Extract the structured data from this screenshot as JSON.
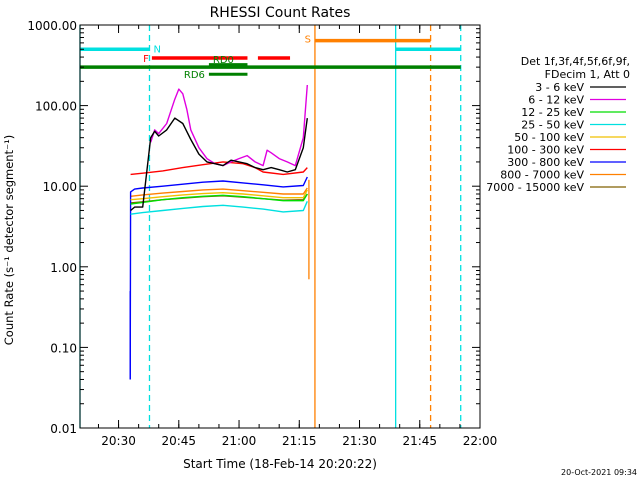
{
  "chart_data": {
    "type": "line",
    "title": "RHESSI Count Rates",
    "xlabel": "Start Time (18-Feb-14 20:20:22)",
    "ylabel": "Count Rate (s⁻¹ detector segment⁻¹)",
    "x_unit": "minutes after 20:20:22",
    "xlim": [
      0,
      99.6
    ],
    "ylim": [
      0.01,
      1000
    ],
    "yscale": "log",
    "grid": false,
    "x_ticks": [
      {
        "label": "20:30",
        "value": 9.6
      },
      {
        "label": "20:45",
        "value": 24.6
      },
      {
        "label": "21:00",
        "value": 39.6
      },
      {
        "label": "21:15",
        "value": 54.6
      },
      {
        "label": "21:30",
        "value": 69.6
      },
      {
        "label": "21:45",
        "value": 84.6
      },
      {
        "label": "22:00",
        "value": 99.6
      }
    ],
    "y_ticks": [
      {
        "label": "0.01",
        "value": 0.01
      },
      {
        "label": "0.10",
        "value": 0.1
      },
      {
        "label": "1.00",
        "value": 1
      },
      {
        "label": "10.00",
        "value": 10
      },
      {
        "label": "100.00",
        "value": 100
      },
      {
        "label": "1000.00",
        "value": 1000
      }
    ],
    "legend": {
      "placement": "right",
      "header": [
        "Det 1f,3f,4f,5f,6f,9f,",
        "FDecim 1, Att 0"
      ],
      "entries": [
        {
          "name": "3 - 6 keV",
          "color": "#000000"
        },
        {
          "name": "6 - 12 keV",
          "color": "#e000e0"
        },
        {
          "name": "12 - 25 keV",
          "color": "#00dd00"
        },
        {
          "name": "25 - 50 keV",
          "color": "#00e0e0"
        },
        {
          "name": "50 - 100 keV",
          "color": "#f0c000"
        },
        {
          "name": "100 - 300 keV",
          "color": "#ff0000"
        },
        {
          "name": "300 - 800 keV",
          "color": "#0000ff"
        },
        {
          "name": "800 - 7000 keV",
          "color": "#ff8000"
        },
        {
          "name": "7000 - 15000 keV",
          "color": "#806000"
        }
      ]
    },
    "series": [
      {
        "name": "3 - 6 keV",
        "color": "#000000",
        "x": [
          12.6,
          13.6,
          15.6,
          17.6,
          18.6,
          19.6,
          21.6,
          23.6,
          25.6,
          27.6,
          29.6,
          31.6,
          33.6,
          35.6,
          37.6,
          39.6,
          41.6,
          43.6,
          45.6,
          47.6,
          49.6,
          51.6,
          53.6,
          55.6,
          56.6
        ],
        "y": [
          5,
          5.5,
          5.5,
          40,
          48,
          42,
          50,
          70,
          60,
          38,
          25,
          20,
          19,
          18,
          21,
          20,
          19,
          17,
          16,
          17,
          16,
          15,
          16,
          30,
          70
        ]
      },
      {
        "name": "6 - 12 keV",
        "color": "#e000e0",
        "x": [
          17.6,
          18.6,
          19.6,
          21.6,
          23.6,
          24.6,
          25.6,
          26.6,
          27.6,
          29.6,
          31.6,
          33.6,
          35.6,
          37.6,
          39.6,
          41.6,
          43.6,
          45.6,
          46.6,
          47.6,
          49.6,
          51.6,
          53.6,
          55.6,
          56.6
        ],
        "y": [
          35,
          50,
          45,
          60,
          120,
          160,
          140,
          90,
          50,
          30,
          22,
          19,
          18,
          20,
          22,
          24,
          20,
          18,
          28,
          26,
          22,
          20,
          18,
          40,
          180
        ]
      },
      {
        "name": "12 - 25 keV",
        "color": "#00dd00",
        "x": [
          12.6,
          15.6,
          20.6,
          25.6,
          30.6,
          35.6,
          40.6,
          45.6,
          50.6,
          55.6,
          56.6
        ],
        "y": [
          6,
          6.3,
          6.8,
          7.2,
          7.5,
          7.7,
          7.4,
          7.0,
          6.6,
          6.6,
          8
        ]
      },
      {
        "name": "25 - 50 keV",
        "color": "#00e0e0",
        "x": [
          12.6,
          15.6,
          20.6,
          25.6,
          30.6,
          35.6,
          40.6,
          45.6,
          50.6,
          55.6,
          56.6
        ],
        "y": [
          4.5,
          4.7,
          5.0,
          5.3,
          5.6,
          5.8,
          5.5,
          5.2,
          4.8,
          5.0,
          6.5
        ]
      },
      {
        "name": "50 - 100 keV",
        "color": "#f0c000",
        "x": [
          12.6,
          15.6,
          20.6,
          25.6,
          30.6,
          35.6,
          40.6,
          45.6,
          50.6,
          55.6,
          56.6
        ],
        "y": [
          6.8,
          7.0,
          7.4,
          7.8,
          8.1,
          8.3,
          8.0,
          7.6,
          7.2,
          7.2,
          9
        ]
      },
      {
        "name": "100 - 300 keV",
        "color": "#ff0000",
        "x": [
          12.6,
          15.6,
          20.6,
          25.6,
          30.6,
          35.6,
          40.6,
          43.6,
          45.6,
          50.6,
          55.6,
          56.6
        ],
        "y": [
          14,
          14.5,
          15.5,
          17,
          18.5,
          20,
          19,
          17,
          15,
          14,
          15,
          17
        ]
      },
      {
        "name": "300 - 800 keV",
        "color": "#0000ff",
        "x": [
          12.5,
          12.6,
          13.6,
          15.6,
          20.6,
          25.6,
          30.6,
          35.6,
          40.6,
          45.6,
          50.6,
          55.6,
          56.6
        ],
        "y": [
          0.04,
          8.5,
          9.2,
          9.5,
          10,
          10.6,
          11.2,
          11.6,
          11,
          10.4,
          9.8,
          10.2,
          13
        ]
      },
      {
        "name": "800 - 7000 keV",
        "color": "#ff8000",
        "x": [
          12.6,
          15.6,
          20.6,
          25.6,
          30.6,
          35.6,
          40.6,
          45.6,
          50.6,
          55.6,
          56.6
        ],
        "y": [
          7.5,
          7.8,
          8.2,
          8.6,
          9.0,
          9.2,
          8.8,
          8.4,
          8.0,
          8.0,
          9.5
        ]
      },
      {
        "name": "7000 - 15000 keV",
        "color": "#806000",
        "x": [
          12.6,
          15.6,
          20.6,
          25.6,
          30.6,
          35.6,
          40.6,
          45.6,
          50.6,
          55.6,
          56.6
        ],
        "y": [
          6.2,
          6.4,
          6.8,
          7.1,
          7.4,
          7.6,
          7.3,
          7.0,
          6.7,
          6.8,
          8
        ]
      }
    ],
    "annotations": {
      "vlines": [
        {
          "x": 0.0,
          "color": "#00e0e0",
          "style": "solid"
        },
        {
          "x": 17.3,
          "color": "#00e0e0",
          "style": "dashed"
        },
        {
          "x": 58.5,
          "color": "#ff8000",
          "style": "solid"
        },
        {
          "x": 78.6,
          "color": "#00e0e0",
          "style": "solid"
        },
        {
          "x": 87.3,
          "color": "#ff8000",
          "style": "dashed"
        },
        {
          "x": 94.8,
          "color": "#00e0e0",
          "style": "dashed"
        }
      ],
      "bars": [
        {
          "label": "N",
          "color": "#00e0e0",
          "segments": [
            [
              0.0,
              17.3
            ],
            [
              78.6,
              94.8
            ]
          ],
          "y": 500
        },
        {
          "label": "F",
          "color": "#ff0000",
          "segments": [
            [
              17.9,
              41.7
            ],
            [
              44.3,
              52.3
            ]
          ],
          "y": 390
        },
        {
          "label": "",
          "color": "#008000",
          "segments": [
            [
              0.0,
              94.8
            ]
          ],
          "y": 300
        },
        {
          "label": "RD0",
          "color": "#008000",
          "segments": [
            [
              32.1,
              41.7
            ]
          ],
          "y": 320
        },
        {
          "label": "RD6",
          "color": "#008000",
          "segments": [
            [
              32.1,
              41.7
            ]
          ],
          "y": 245
        },
        {
          "label": "S",
          "color": "#ff8000",
          "segments": [
            [
              58.5,
              87.3
            ]
          ],
          "y": 640
        }
      ],
      "spikes": [
        {
          "x": 12.5,
          "y_from": 0.5,
          "y_to": 0.04,
          "color": "#0000ff"
        },
        {
          "x": 57.0,
          "y_from": 0.7,
          "y_to": 12,
          "color": "#ff8000"
        }
      ]
    },
    "footer_text": "20-Oct-2021 09:34"
  }
}
